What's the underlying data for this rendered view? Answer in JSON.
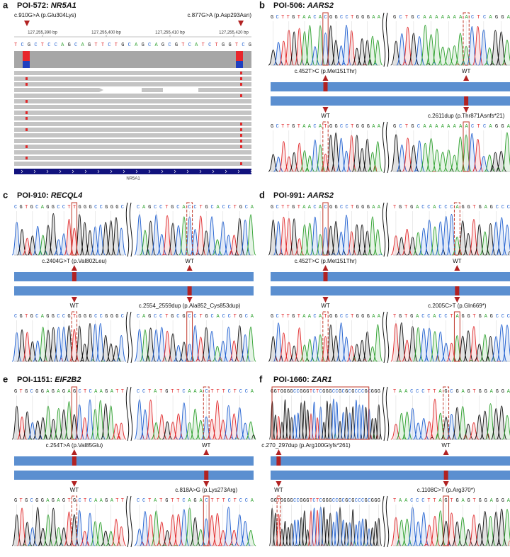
{
  "panels": [
    {
      "letter": "a",
      "title": "POI-572: ",
      "gene": "NR5A1",
      "mutations": [
        "c.910G>A (p.Glu304Lys)",
        "c.877G>A (p.Asp293Asn)"
      ],
      "coordinates": [
        "127,255,390 bp",
        "127,255,400 bp",
        "127,255,410 bp",
        "127,255,420 bp"
      ],
      "sequence": "TCGCTCCAGCAGTTCTGCAGCAGCGTCATCTGGTCG",
      "track": "NR5A1"
    },
    {
      "letter": "b",
      "title": "POI-506: ",
      "gene": "AARS2",
      "top_sequences": [
        "GCTTGTAACACGGCCTGGGAA",
        "GCTGCAAAAAAAACTCAGGA"
      ],
      "labels": [
        "c.452T>C (p.Met151Thr)",
        "WT",
        "WT",
        "c.2611dup (p.Thr871Asnfs*21)"
      ],
      "bottom_sequences": [
        "GCTTGTAACATGGCCTGGGAA",
        "GCTGCAAAAAAAACTCAGGA"
      ]
    },
    {
      "letter": "c",
      "title": "POI-910: ",
      "gene": "RECQL4",
      "top_sequences": [
        "CGTGCAGGCCTTGGGCCGGGC",
        "CAGCCTGCACCTGCACCTGCA"
      ],
      "labels": [
        "c.2404G>T (p.Val802Leu)",
        "WT",
        "WT",
        "c.2554_2559dup (p.Ala852_Cys853dup)"
      ],
      "bottom_sequences": [
        "CGTGCAGGCCGTGGGCCGGGC",
        "CAGCCTGCGCCTGCACCTGCA"
      ]
    },
    {
      "letter": "d",
      "title": "POI-991: ",
      "gene": "AARS2",
      "top_sequences": [
        "GCTTGTAACACGGCCTGGGAA",
        "TGTGACCACCCAGGTGAGCCC"
      ],
      "labels": [
        "c.452T>C (p.Met151Thr)",
        "WT",
        "WT",
        "c.2005C>T (p.Gln669*)"
      ],
      "bottom_sequences": [
        "GCTTGTAACATGGCCTGGGAA",
        "TGTGACCACCTAGGTGAGCCC"
      ]
    },
    {
      "letter": "e",
      "title": "POI-1151: ",
      "gene": "EIF2B2",
      "top_sequences": [
        "GTGCGGAGAGAGCTCAAGATT",
        "CCTATGTTCAAACTTTCTCCA"
      ],
      "labels": [
        "c.254T>A (p.Val85Glu)",
        "WT",
        "WT",
        "c.818A>G (p.Lys273Arg)"
      ],
      "bottom_sequences": [
        "GTGCGGAGAGTGCTCAAGATT",
        "CCTATGTTCAGACTTTCTCCA"
      ]
    },
    {
      "letter": "f",
      "title": "POI-1660: ",
      "gene": "ZAR1",
      "top_sequences": [
        "GGTGGGGCCGGGTCTCGGGCCGCGCGCCCGCGGG",
        "TAACCCTTAGCGAGTGGAGGA"
      ],
      "labels": [
        "c.270_297dup (p.Arg100Glyfs*261)",
        "WT",
        "WT",
        "c.1108C>T (p.Arg370*)"
      ],
      "bottom_sequences": [
        "GGTGGGGCCGGGTCTCGGGCCGCGCGCCCGCGGG",
        "TAACCCTTAGTGAGTGGAGGA"
      ]
    }
  ]
}
